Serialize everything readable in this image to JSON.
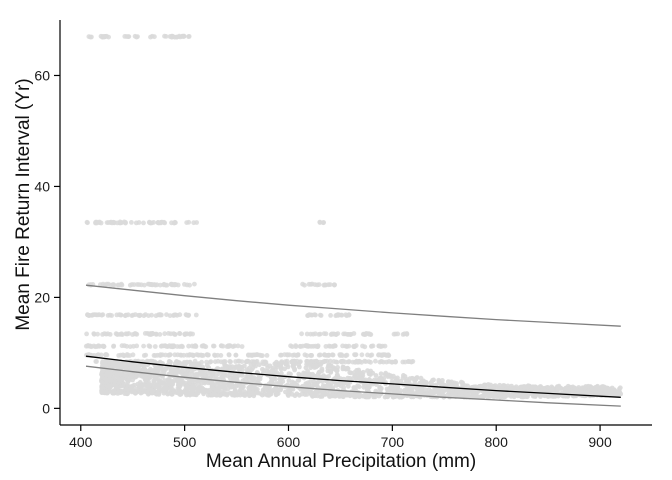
{
  "chart_data": {
    "type": "scatter",
    "title": "",
    "xlabel": "Mean Annual Precipitation (mm)",
    "ylabel": "Mean Fire Return Interval (Yr)",
    "xlim": [
      380,
      950
    ],
    "ylim": [
      -3,
      70
    ],
    "grid": false,
    "x_ticks": [
      400,
      500,
      600,
      700,
      800,
      900
    ],
    "y_ticks": [
      0,
      20,
      40,
      60
    ],
    "x_tick_labels": [
      "400",
      "500",
      "600",
      "700",
      "800",
      "900"
    ],
    "y_tick_labels": [
      "0",
      "20",
      "40",
      "60"
    ],
    "point_color": "#d9d9d9",
    "fit_color": "#000000",
    "bound_color": "#7f7f7f",
    "scatter_bands": [
      {
        "y": 67.0,
        "x_segments": [
          [
            405,
            430
          ],
          [
            440,
            455
          ],
          [
            465,
            470
          ],
          [
            470,
            512
          ]
        ]
      },
      {
        "y": 33.5,
        "x_segments": [
          [
            405,
            512
          ],
          [
            628,
            636
          ]
        ]
      },
      {
        "y": 22.3,
        "x_segments": [
          [
            405,
            512
          ],
          [
            612,
            645
          ]
        ]
      },
      {
        "y": 16.8,
        "x_segments": [
          [
            405,
            512
          ],
          [
            612,
            660
          ]
        ]
      },
      {
        "y": 13.4,
        "x_segments": [
          [
            405,
            512
          ],
          [
            612,
            680
          ],
          [
            700,
            715
          ]
        ]
      },
      {
        "y": 11.2,
        "x_segments": [
          [
            405,
            560
          ],
          [
            600,
            695
          ]
        ]
      },
      {
        "y": 9.6,
        "x_segments": [
          [
            405,
            580
          ],
          [
            590,
            700
          ]
        ]
      },
      {
        "y": 8.4,
        "x_segments": [
          [
            410,
            720
          ]
        ]
      }
    ],
    "scatter_cloud": [
      {
        "x": 420,
        "ymin": 2.8,
        "ymax": 8.5
      },
      {
        "x": 450,
        "ymin": 2.6,
        "ymax": 8.5
      },
      {
        "x": 500,
        "ymin": 2.4,
        "ymax": 8.3
      },
      {
        "x": 550,
        "ymin": 2.3,
        "ymax": 7.8
      },
      {
        "x": 600,
        "ymin": 2.2,
        "ymax": 8.5
      },
      {
        "x": 650,
        "ymin": 2.1,
        "ymax": 7.6
      },
      {
        "x": 700,
        "ymin": 2.0,
        "ymax": 6.2
      },
      {
        "x": 750,
        "ymin": 2.0,
        "ymax": 5.0
      },
      {
        "x": 800,
        "ymin": 2.0,
        "ymax": 4.2
      },
      {
        "x": 850,
        "ymin": 2.1,
        "ymax": 4.0
      },
      {
        "x": 900,
        "ymin": 2.3,
        "ymax": 4.0
      },
      {
        "x": 920,
        "ymin": 2.5,
        "ymax": 3.8
      }
    ],
    "series": [
      {
        "role": "fit",
        "x": [
          405,
          450,
          500,
          550,
          600,
          650,
          700,
          750,
          800,
          850,
          920
        ],
        "values": [
          9.4,
          8.4,
          7.4,
          6.5,
          5.7,
          5.0,
          4.4,
          3.8,
          3.2,
          2.7,
          2.0
        ]
      },
      {
        "role": "upper",
        "x": [
          405,
          450,
          500,
          550,
          600,
          650,
          700,
          750,
          800,
          850,
          920
        ],
        "values": [
          22.2,
          21.3,
          20.3,
          19.4,
          18.6,
          17.9,
          17.2,
          16.6,
          16.0,
          15.5,
          14.8
        ]
      },
      {
        "role": "lower",
        "x": [
          405,
          450,
          500,
          550,
          600,
          650,
          700,
          750,
          800,
          850,
          920
        ],
        "values": [
          7.6,
          6.6,
          5.6,
          4.7,
          3.9,
          3.2,
          2.6,
          2.0,
          1.5,
          1.0,
          0.4
        ]
      }
    ]
  }
}
